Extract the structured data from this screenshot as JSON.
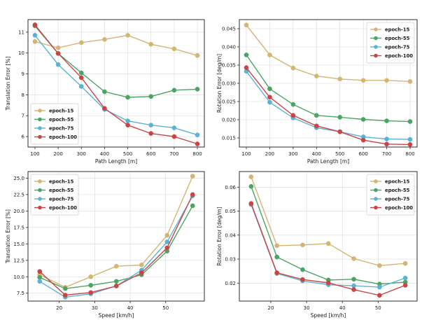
{
  "chart_data": [
    {
      "type": "line",
      "id": "tl",
      "title": "",
      "xlabel": "Path Length [m]",
      "ylabel": "Translation Error [%]",
      "x": [
        100,
        200,
        300,
        400,
        500,
        600,
        700,
        800
      ],
      "xlim": [
        70,
        830
      ],
      "ylim": [
        5.5,
        11.6
      ],
      "xticks": [
        100,
        200,
        300,
        400,
        500,
        600,
        700,
        800
      ],
      "yticks": [
        6,
        7,
        8,
        9,
        10,
        11
      ],
      "ytick_decimals": 0,
      "grid": true,
      "legend": "bottom-left",
      "series": [
        {
          "name": "epoch-15",
          "color": "#d4b572",
          "values": [
            10.55,
            10.25,
            10.5,
            10.65,
            10.85,
            10.42,
            10.2,
            9.88
          ]
        },
        {
          "name": "epoch-55",
          "color": "#4aa564",
          "values": [
            11.3,
            9.98,
            9.05,
            8.15,
            7.88,
            7.92,
            8.22,
            8.27
          ]
        },
        {
          "name": "epoch-75",
          "color": "#5bb3d3",
          "values": [
            10.85,
            9.45,
            8.4,
            7.3,
            6.75,
            6.55,
            6.42,
            6.08
          ]
        },
        {
          "name": "epoch-100",
          "color": "#c94545",
          "values": [
            11.35,
            9.98,
            8.82,
            7.35,
            6.55,
            6.15,
            6.0,
            5.65
          ]
        }
      ]
    },
    {
      "type": "line",
      "id": "tr",
      "title": "",
      "xlabel": "Path Length [m]",
      "ylabel": "Rotation Error [deg/m]",
      "x": [
        100,
        200,
        300,
        400,
        500,
        600,
        700,
        800
      ],
      "xlim": [
        70,
        830
      ],
      "ylim": [
        0.0125,
        0.0475
      ],
      "xticks": [
        100,
        200,
        300,
        400,
        500,
        600,
        700,
        800
      ],
      "yticks": [
        0.015,
        0.02,
        0.025,
        0.03,
        0.035,
        0.04,
        0.045
      ],
      "ytick_decimals": 3,
      "grid": true,
      "legend": "top-right",
      "series": [
        {
          "name": "epoch-15",
          "color": "#d4b572",
          "values": [
            0.046,
            0.0378,
            0.0342,
            0.032,
            0.0312,
            0.0308,
            0.0308,
            0.0305
          ]
        },
        {
          "name": "epoch-55",
          "color": "#4aa564",
          "values": [
            0.0378,
            0.0285,
            0.0242,
            0.0212,
            0.0207,
            0.0201,
            0.0197,
            0.0195
          ]
        },
        {
          "name": "epoch-75",
          "color": "#5bb3d3",
          "values": [
            0.0333,
            0.0248,
            0.0205,
            0.0178,
            0.0167,
            0.0153,
            0.0147,
            0.0146
          ]
        },
        {
          "name": "epoch-100",
          "color": "#c94545",
          "values": [
            0.0343,
            0.0262,
            0.0212,
            0.0183,
            0.0167,
            0.0144,
            0.0133,
            0.0132
          ]
        }
      ]
    },
    {
      "type": "line",
      "id": "bl",
      "title": "",
      "xlabel": "Speed [km/h]",
      "ylabel": "Translation Error [%]",
      "x": [
        14.5,
        21.7,
        28.9,
        36.1,
        43.2,
        50.4,
        57.6
      ],
      "xlim": [
        11.2,
        60.9
      ],
      "ylim": [
        6.3,
        26.0
      ],
      "xticks": [
        20,
        30,
        40,
        50
      ],
      "yticks": [
        7.5,
        10.0,
        12.5,
        15.0,
        17.5,
        20.0,
        22.5,
        25.0
      ],
      "ytick_decimals": 1,
      "grid": true,
      "legend": "top-left",
      "series": [
        {
          "name": "epoch-15",
          "color": "#d4b572",
          "values": [
            10.3,
            8.4,
            10.0,
            11.6,
            11.8,
            16.3,
            25.3
          ]
        },
        {
          "name": "epoch-55",
          "color": "#4aa564",
          "values": [
            9.9,
            8.2,
            8.7,
            9.3,
            10.3,
            13.9,
            20.8
          ]
        },
        {
          "name": "epoch-75",
          "color": "#5bb3d3",
          "values": [
            9.3,
            6.9,
            7.4,
            8.6,
            11.0,
            15.3,
            22.3
          ]
        },
        {
          "name": "epoch-100",
          "color": "#c94545",
          "values": [
            10.8,
            7.2,
            7.6,
            8.6,
            10.6,
            14.4,
            22.5
          ]
        }
      ]
    },
    {
      "type": "line",
      "id": "br",
      "title": "",
      "xlabel": "Speed [km/h]",
      "ylabel": "Rotation Error [deg/m]",
      "x": [
        14.5,
        21.7,
        28.9,
        36.1,
        43.2,
        50.4,
        57.6
      ],
      "xlim": [
        11.2,
        60.9
      ],
      "ylim": [
        0.0125,
        0.0665
      ],
      "xticks": [
        20,
        30,
        40,
        50
      ],
      "yticks": [
        0.02,
        0.03,
        0.04,
        0.05,
        0.06
      ],
      "ytick_decimals": 2,
      "grid": true,
      "legend": "top-right",
      "series": [
        {
          "name": "epoch-15",
          "color": "#d4b572",
          "values": [
            0.0643,
            0.0356,
            0.0359,
            0.0365,
            0.0302,
            0.0273,
            0.0282
          ]
        },
        {
          "name": "epoch-55",
          "color": "#4aa564",
          "values": [
            0.0603,
            0.0309,
            0.0256,
            0.0213,
            0.0216,
            0.0196,
            0.0204
          ]
        },
        {
          "name": "epoch-75",
          "color": "#5bb3d3",
          "values": [
            0.0527,
            0.024,
            0.0209,
            0.0193,
            0.0189,
            0.0183,
            0.0221
          ]
        },
        {
          "name": "epoch-100",
          "color": "#c94545",
          "values": [
            0.0532,
            0.0243,
            0.0215,
            0.0201,
            0.0173,
            0.0149,
            0.0191
          ]
        }
      ]
    }
  ]
}
